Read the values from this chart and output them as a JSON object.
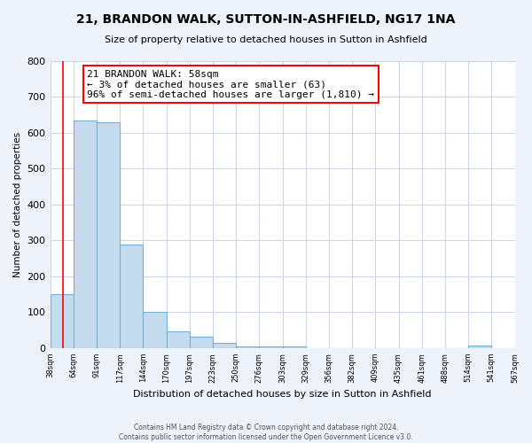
{
  "title": "21, BRANDON WALK, SUTTON-IN-ASHFIELD, NG17 1NA",
  "subtitle": "Size of property relative to detached houses in Sutton in Ashfield",
  "xlabel": "Distribution of detached houses by size in Sutton in Ashfield",
  "ylabel": "Number of detached properties",
  "bar_values": [
    150,
    635,
    630,
    290,
    102,
    46,
    33,
    14,
    5,
    5,
    5,
    0,
    0,
    0,
    0,
    0,
    0,
    0,
    8,
    0
  ],
  "bar_labels": [
    "38sqm",
    "64sqm",
    "91sqm",
    "117sqm",
    "144sqm",
    "170sqm",
    "197sqm",
    "223sqm",
    "250sqm",
    "276sqm",
    "303sqm",
    "329sqm",
    "356sqm",
    "382sqm",
    "409sqm",
    "435sqm",
    "461sqm",
    "488sqm",
    "514sqm",
    "541sqm",
    "567sqm"
  ],
  "bar_color": "#c5dcef",
  "bar_edge_color": "#7aafd4",
  "annotation_box_text": "21 BRANDON WALK: 58sqm\n← 3% of detached houses are smaller (63)\n96% of semi-detached houses are larger (1,810) →",
  "annotation_box_facecolor": "white",
  "annotation_box_edgecolor": "red",
  "red_line_color": "red",
  "ylim": [
    0,
    800
  ],
  "yticks": [
    0,
    100,
    200,
    300,
    400,
    500,
    600,
    700,
    800
  ],
  "footer_line1": "Contains HM Land Registry data © Crown copyright and database right 2024.",
  "footer_line2": "Contains public sector information licensed under the Open Government Licence v3.0.",
  "bg_color": "#eef2fb",
  "plot_bg_color": "white",
  "grid_color": "#c8d4ef"
}
